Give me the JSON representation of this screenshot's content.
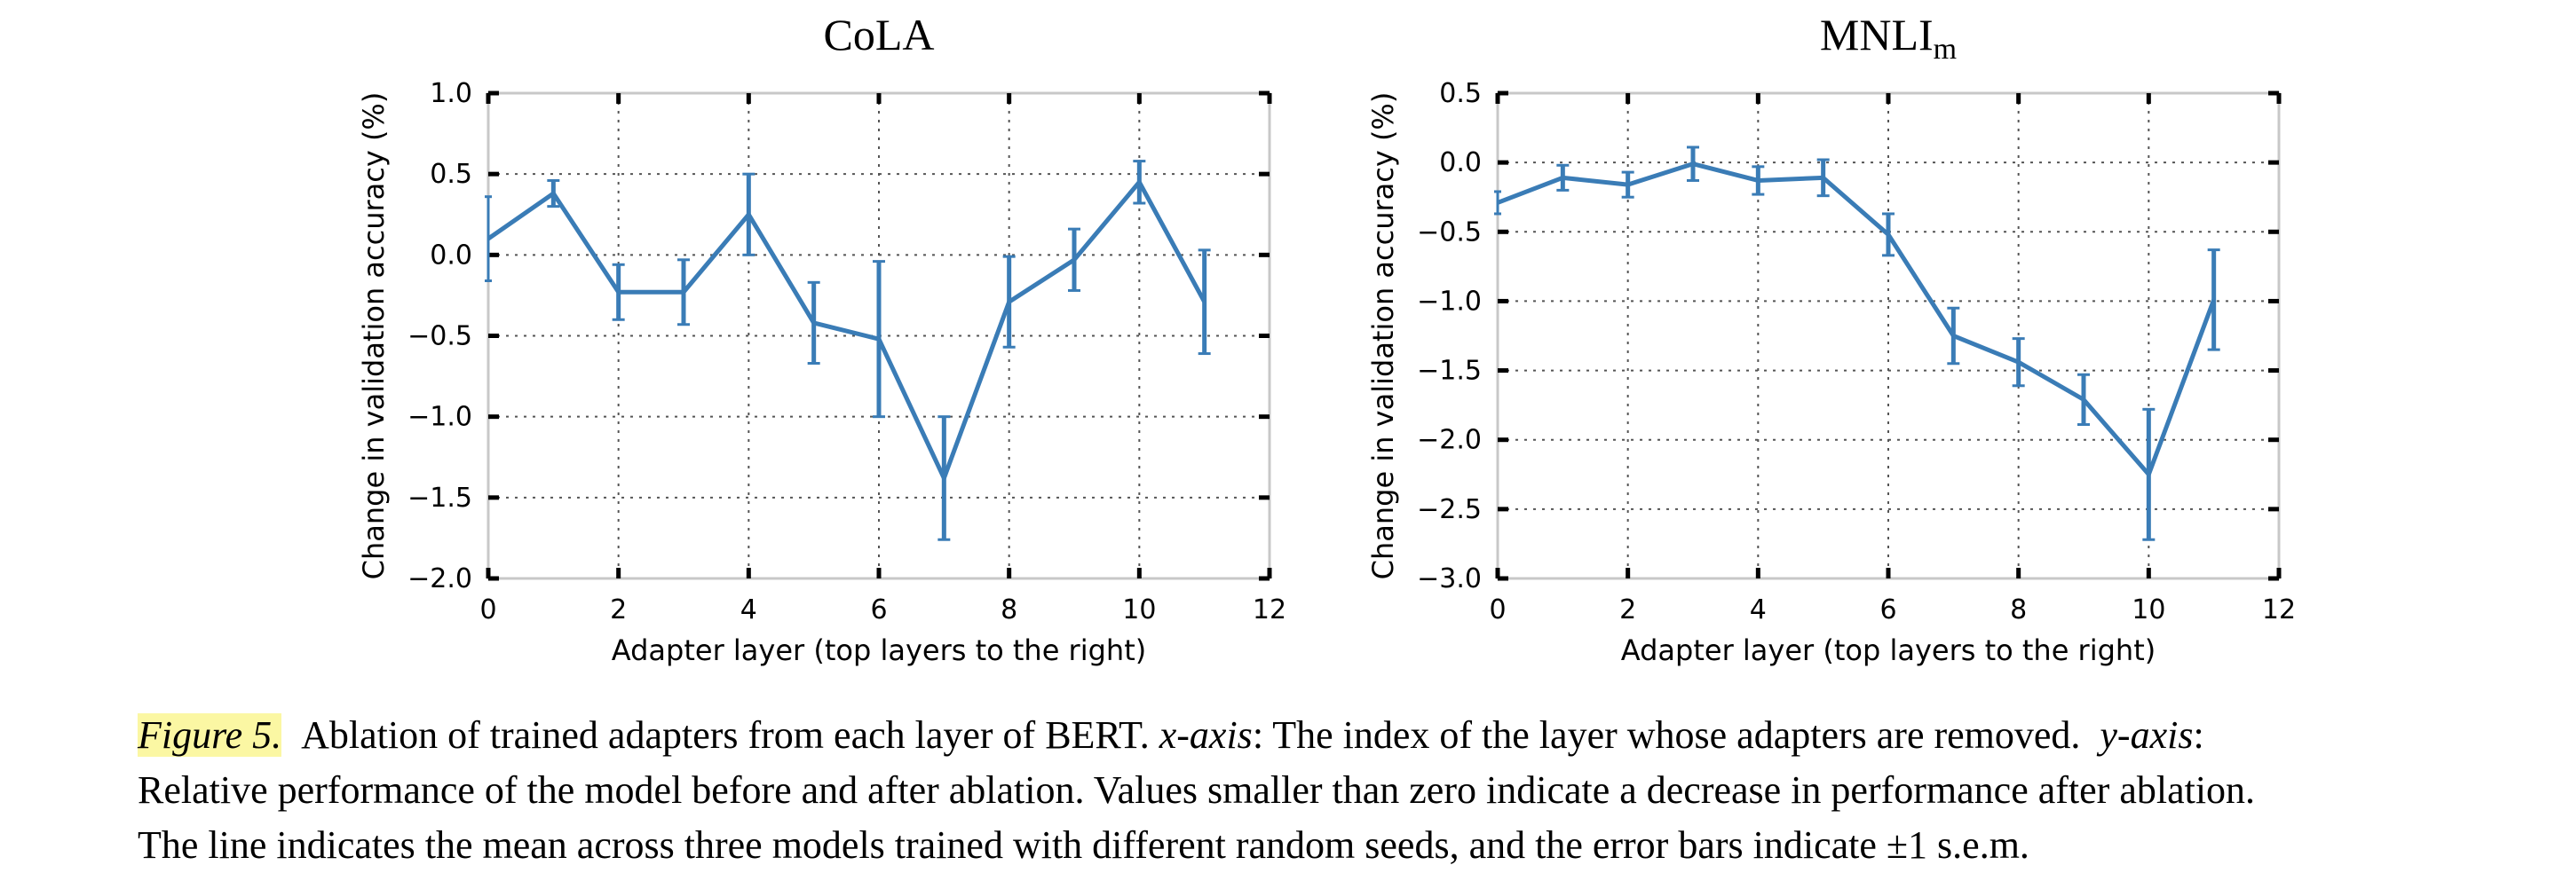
{
  "chart_data": [
    {
      "type": "line",
      "title": "CoLA",
      "xlabel": "Adapter layer (top layers to the right)",
      "ylabel": "Change in validation accuracy (%)",
      "xlim": [
        0,
        12
      ],
      "ylim": [
        -2.0,
        1.0
      ],
      "xticks": [
        0,
        2,
        4,
        6,
        8,
        10,
        12
      ],
      "yticks": [
        -2.0,
        -1.5,
        -1.0,
        -0.5,
        0.0,
        0.5,
        1.0
      ],
      "xtick_labels": [
        "0",
        "2",
        "4",
        "6",
        "8",
        "10",
        "12"
      ],
      "ytick_labels": [
        "−2.0",
        "−1.5",
        "−1.0",
        "−0.5",
        "0.0",
        "0.5",
        "1.0"
      ],
      "grid": true,
      "color": "#3a7cb6",
      "series": [
        {
          "x": [
            0,
            1,
            2,
            3,
            4,
            5,
            6,
            7,
            8,
            9,
            10,
            11
          ],
          "y": [
            0.1,
            0.38,
            -0.23,
            -0.23,
            0.25,
            -0.42,
            -0.52,
            -1.38,
            -0.29,
            -0.03,
            0.45,
            -0.29
          ],
          "error": [
            0.26,
            0.08,
            0.17,
            0.2,
            0.25,
            0.25,
            0.48,
            0.38,
            0.28,
            0.19,
            0.13,
            0.32
          ]
        }
      ]
    },
    {
      "type": "line",
      "title": "MNLI",
      "title_sub": "m",
      "xlabel": "Adapter layer (top layers to the right)",
      "ylabel": "Change in validation accuracy (%)",
      "xlim": [
        0,
        12
      ],
      "ylim": [
        -3.0,
        0.5
      ],
      "xticks": [
        0,
        2,
        4,
        6,
        8,
        10,
        12
      ],
      "yticks": [
        -3.0,
        -2.5,
        -2.0,
        -1.5,
        -1.0,
        -0.5,
        0.0,
        0.5
      ],
      "xtick_labels": [
        "0",
        "2",
        "4",
        "6",
        "8",
        "10",
        "12"
      ],
      "ytick_labels": [
        "−3.0",
        "−2.5",
        "−2.0",
        "−1.5",
        "−1.0",
        "−0.5",
        "0.0",
        "0.5"
      ],
      "grid": true,
      "color": "#3a7cb6",
      "series": [
        {
          "x": [
            0,
            1,
            2,
            3,
            4,
            5,
            6,
            7,
            8,
            9,
            10,
            11
          ],
          "y": [
            -0.29,
            -0.11,
            -0.16,
            -0.01,
            -0.13,
            -0.11,
            -0.52,
            -1.25,
            -1.44,
            -1.71,
            -2.25,
            -0.99
          ],
          "error": [
            0.08,
            0.09,
            0.09,
            0.12,
            0.1,
            0.13,
            0.15,
            0.2,
            0.17,
            0.18,
            0.47,
            0.36
          ]
        }
      ]
    }
  ],
  "caption": {
    "label": "Figure 5.",
    "line1_a": "Ablation of trained adapters from each layer of BERT.",
    "line1_xaxis": "x-axis",
    "line1_b": ": The index of the layer whose adapters are removed.",
    "line1_yaxis": "y-axis",
    "line1_c": ":",
    "line2": "Relative performance of the model before and after ablation. Values smaller than zero indicate a decrease in performance after ablation.",
    "line3": "The line indicates the mean across three models trained with different random seeds, and the error bars indicate ±1 s.e.m."
  }
}
